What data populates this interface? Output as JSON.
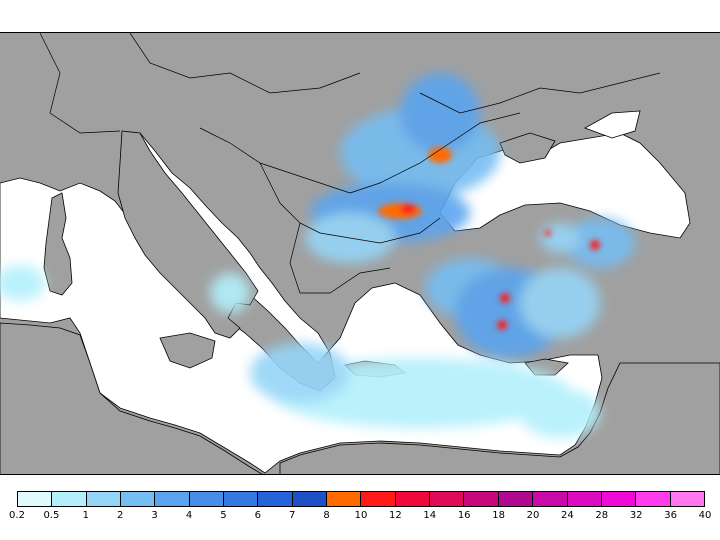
{
  "map": {
    "land_color": "#a0a0a0",
    "sea_color": "#ffffff",
    "border_color": "#000000"
  },
  "legend": {
    "colors": [
      "#e0fcff",
      "#b3f0fb",
      "#95d5f7",
      "#76bdf2",
      "#5aa4ef",
      "#4a8de8",
      "#3778e0",
      "#2663d8",
      "#1e50c6",
      "#ff6a00",
      "#ff1a1a",
      "#f00a3c",
      "#e00a5a",
      "#c8087a",
      "#b00a90",
      "#c80aa8",
      "#dc0ac0",
      "#f00ad8",
      "#ff3cec",
      "#ff78f0"
    ],
    "ticks": [
      "0.2",
      "0.5",
      "1",
      "2",
      "3",
      "4",
      "5",
      "6",
      "7",
      "8",
      "10",
      "12",
      "14",
      "16",
      "18",
      "20",
      "24",
      "28",
      "32",
      "36",
      "40"
    ]
  }
}
